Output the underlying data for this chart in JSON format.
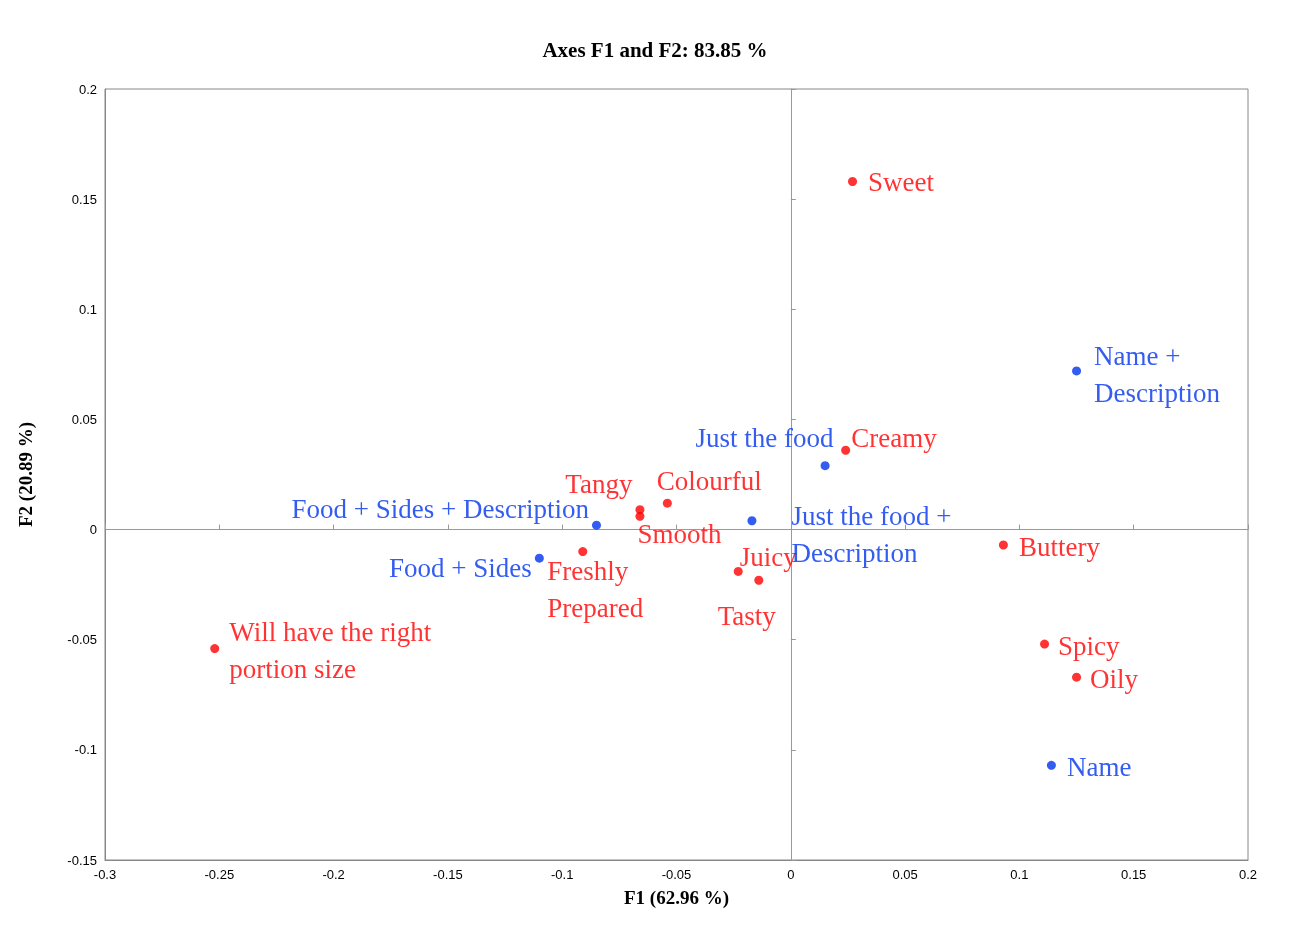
{
  "chart_data": {
    "type": "scatter",
    "title": "Axes F1 and F2: 83.85 %",
    "xlabel": "F1 (62.96 %)",
    "ylabel": "F2 (20.89 %)",
    "xlim": [
      -0.3,
      0.2
    ],
    "xticks": [
      -0.3,
      -0.25,
      -0.2,
      -0.15,
      -0.1,
      -0.05,
      0,
      0.05,
      0.1,
      0.15,
      0.2
    ],
    "ylim": [
      -0.15,
      0.2
    ],
    "yticks": [
      -0.15,
      -0.1,
      -0.05,
      0,
      0.05,
      0.1,
      0.15,
      0.2
    ],
    "marker": "circle",
    "series": [
      {
        "color": "#ff0000",
        "x": [
          0.027,
          0.024,
          -0.054,
          -0.066,
          -0.066,
          -0.091,
          -0.023,
          -0.014,
          0.093,
          0.111,
          0.125,
          -0.252
        ],
        "values": [
          0.158,
          0.036,
          0.012,
          0.009,
          0.006,
          -0.01,
          -0.019,
          -0.023,
          -0.007,
          -0.052,
          -0.067,
          -0.054
        ],
        "value_labels": [
          "Sweet",
          "Creamy",
          "Colourful",
          "Tangy",
          "Smooth",
          "Freshly\nPrepared",
          "Juicy",
          "Tasty",
          "Buttery",
          "Spicy",
          "Oily",
          "Will have the right\nportion size"
        ]
      },
      {
        "color": "#0033ee",
        "x": [
          0.125,
          0.015,
          -0.017,
          -0.085,
          -0.11,
          0.114
        ],
        "values": [
          0.072,
          0.029,
          0.004,
          0.002,
          -0.013,
          -0.107
        ],
        "value_labels": [
          "Name +\nDescription",
          "Just the food",
          "Just the food +\nDescription",
          "Food + Sides + Description",
          "Food + Sides",
          "Name"
        ]
      }
    ]
  }
}
